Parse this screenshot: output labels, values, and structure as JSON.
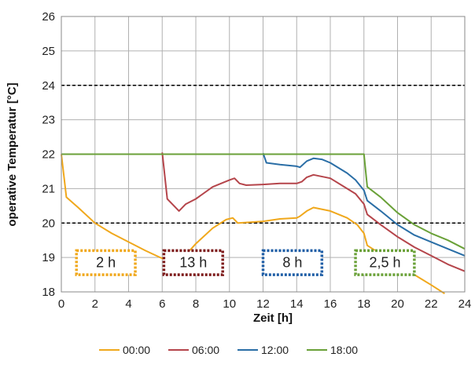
{
  "chart_data": {
    "type": "line",
    "xlabel": "Zeit [h]",
    "ylabel": "operative Temperatur [°C]",
    "xlim": [
      0,
      24
    ],
    "ylim": [
      18,
      26
    ],
    "x_ticks": [
      "0",
      "2",
      "4",
      "6",
      "8",
      "10",
      "12",
      "14",
      "16",
      "18",
      "20",
      "22",
      "24"
    ],
    "y_ticks": [
      "18",
      "19",
      "20",
      "21",
      "22",
      "23",
      "24",
      "25",
      "26"
    ],
    "grid": true,
    "legend_position": "bottom",
    "reference_lines": [
      {
        "y": 24,
        "style": "dashed",
        "color": "#000000"
      },
      {
        "y": 20,
        "style": "dashed",
        "color": "#000000"
      }
    ],
    "series": [
      {
        "name": "00:00",
        "color": "#f0a81c",
        "points": [
          [
            0,
            22
          ],
          [
            0.3,
            20.75
          ],
          [
            1,
            20.45
          ],
          [
            2,
            20.0
          ],
          [
            3,
            19.7
          ],
          [
            4,
            19.45
          ],
          [
            5,
            19.2
          ],
          [
            6,
            18.97
          ],
          [
            7,
            18.85
          ],
          [
            8,
            19.4
          ],
          [
            9,
            19.85
          ],
          [
            9.8,
            20.1
          ],
          [
            10.2,
            20.15
          ],
          [
            10.5,
            20.0
          ],
          [
            12,
            20.05
          ],
          [
            13,
            20.12
          ],
          [
            14,
            20.15
          ],
          [
            14.2,
            20.2
          ],
          [
            14.6,
            20.35
          ],
          [
            15,
            20.45
          ],
          [
            16,
            20.35
          ],
          [
            17,
            20.15
          ],
          [
            17.6,
            19.95
          ],
          [
            18,
            19.7
          ],
          [
            18.2,
            19.35
          ],
          [
            19,
            19.1
          ],
          [
            20,
            18.8
          ],
          [
            21,
            18.5
          ],
          [
            22,
            18.2
          ],
          [
            22.8,
            17.95
          ]
        ]
      },
      {
        "name": "06:00",
        "color": "#b5454b",
        "points": [
          [
            6,
            22.05
          ],
          [
            6.3,
            20.7
          ],
          [
            6.7,
            20.5
          ],
          [
            7,
            20.35
          ],
          [
            7.4,
            20.55
          ],
          [
            8,
            20.7
          ],
          [
            9,
            21.05
          ],
          [
            10,
            21.25
          ],
          [
            10.3,
            21.3
          ],
          [
            10.6,
            21.15
          ],
          [
            11,
            21.1
          ],
          [
            12,
            21.12
          ],
          [
            13,
            21.15
          ],
          [
            14,
            21.15
          ],
          [
            14.3,
            21.2
          ],
          [
            14.6,
            21.33
          ],
          [
            15,
            21.4
          ],
          [
            16,
            21.3
          ],
          [
            17,
            21.0
          ],
          [
            17.5,
            20.85
          ],
          [
            18,
            20.55
          ],
          [
            18.2,
            20.25
          ],
          [
            19,
            19.95
          ],
          [
            20,
            19.6
          ],
          [
            21,
            19.3
          ],
          [
            22,
            19.05
          ],
          [
            23,
            18.8
          ],
          [
            24,
            18.6
          ]
        ]
      },
      {
        "name": "12:00",
        "color": "#2a6ea6",
        "points": [
          [
            12,
            22.03
          ],
          [
            12.2,
            21.75
          ],
          [
            13,
            21.7
          ],
          [
            14,
            21.65
          ],
          [
            14.2,
            21.62
          ],
          [
            14.6,
            21.8
          ],
          [
            15,
            21.88
          ],
          [
            15.5,
            21.85
          ],
          [
            16,
            21.75
          ],
          [
            17,
            21.45
          ],
          [
            17.5,
            21.25
          ],
          [
            18,
            20.95
          ],
          [
            18.2,
            20.65
          ],
          [
            19,
            20.35
          ],
          [
            20,
            19.95
          ],
          [
            21,
            19.65
          ],
          [
            22,
            19.45
          ],
          [
            23,
            19.25
          ],
          [
            24,
            19.05
          ]
        ]
      },
      {
        "name": "18:00",
        "color": "#6aa138",
        "points": [
          [
            0,
            22
          ],
          [
            12,
            22
          ],
          [
            18,
            22
          ],
          [
            18.2,
            21.05
          ],
          [
            19,
            20.75
          ],
          [
            20,
            20.3
          ],
          [
            21,
            19.95
          ],
          [
            22,
            19.7
          ],
          [
            23,
            19.5
          ],
          [
            24,
            19.25
          ]
        ]
      }
    ],
    "annotations": [
      {
        "label": "2 h",
        "color": "#f0a81c",
        "x": [
          0.9,
          4.4
        ],
        "y": [
          18.5,
          19.2
        ]
      },
      {
        "label": "13 h",
        "color": "#7d1b1b",
        "x": [
          6.1,
          9.6
        ],
        "y": [
          18.5,
          19.2
        ]
      },
      {
        "label": "8 h",
        "color": "#1f5ea6",
        "x": [
          12.0,
          15.5
        ],
        "y": [
          18.5,
          19.2
        ]
      },
      {
        "label": "2,5 h",
        "color": "#6aa138",
        "x": [
          17.5,
          21.0
        ],
        "y": [
          18.5,
          19.2
        ]
      }
    ]
  }
}
